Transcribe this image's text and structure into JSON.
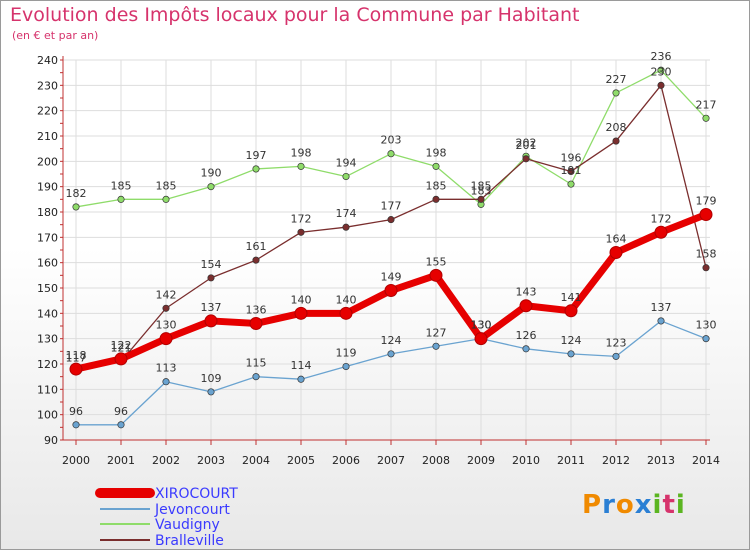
{
  "header": {
    "title": "Evolution des Impôts locaux pour la Commune par Habitant",
    "subtitle": "(en € et par an)"
  },
  "logo": {
    "letters": [
      "P",
      "r",
      "o",
      "x",
      "i",
      "t",
      "i"
    ],
    "colors": [
      "#f08a00",
      "#2a7fd4",
      "#f08a00",
      "#2a7fd4",
      "#5bb521",
      "#d6336c",
      "#5bb521"
    ]
  },
  "chart_data": {
    "type": "line",
    "title": "Evolution des Impôts locaux pour la Commune par Habitant",
    "subtitle": "(en € et par an)",
    "xlabel": "",
    "ylabel": "",
    "ylim": [
      90,
      240
    ],
    "yticks": [
      90,
      100,
      110,
      120,
      130,
      140,
      150,
      160,
      170,
      180,
      190,
      200,
      210,
      220,
      230,
      240
    ],
    "grid": true,
    "legend_position": "bottom-left",
    "categories": [
      "2000",
      "2001",
      "2002",
      "2003",
      "2004",
      "2005",
      "2006",
      "2007",
      "2008",
      "2009",
      "2010",
      "2011",
      "2012",
      "2013",
      "2014"
    ],
    "series": [
      {
        "name": "XIROCOURT",
        "color": "#e60000",
        "values": [
          118,
          122,
          130,
          137,
          136,
          140,
          140,
          149,
          155,
          130,
          143,
          141,
          164,
          172,
          179
        ]
      },
      {
        "name": "Jevoncourt",
        "color": "#6aa3d0",
        "values": [
          96,
          96,
          113,
          109,
          115,
          114,
          119,
          124,
          127,
          130,
          126,
          124,
          123,
          137,
          130
        ]
      },
      {
        "name": "Vaudigny",
        "color": "#8fdc6a",
        "values": [
          182,
          185,
          185,
          190,
          197,
          198,
          194,
          203,
          198,
          183,
          202,
          191,
          227,
          236,
          217
        ]
      },
      {
        "name": "Bralleville",
        "color": "#7a2e2e",
        "values": [
          117,
          121,
          142,
          154,
          161,
          172,
          174,
          177,
          185,
          185,
          201,
          196,
          208,
          230,
          158
        ]
      }
    ]
  }
}
